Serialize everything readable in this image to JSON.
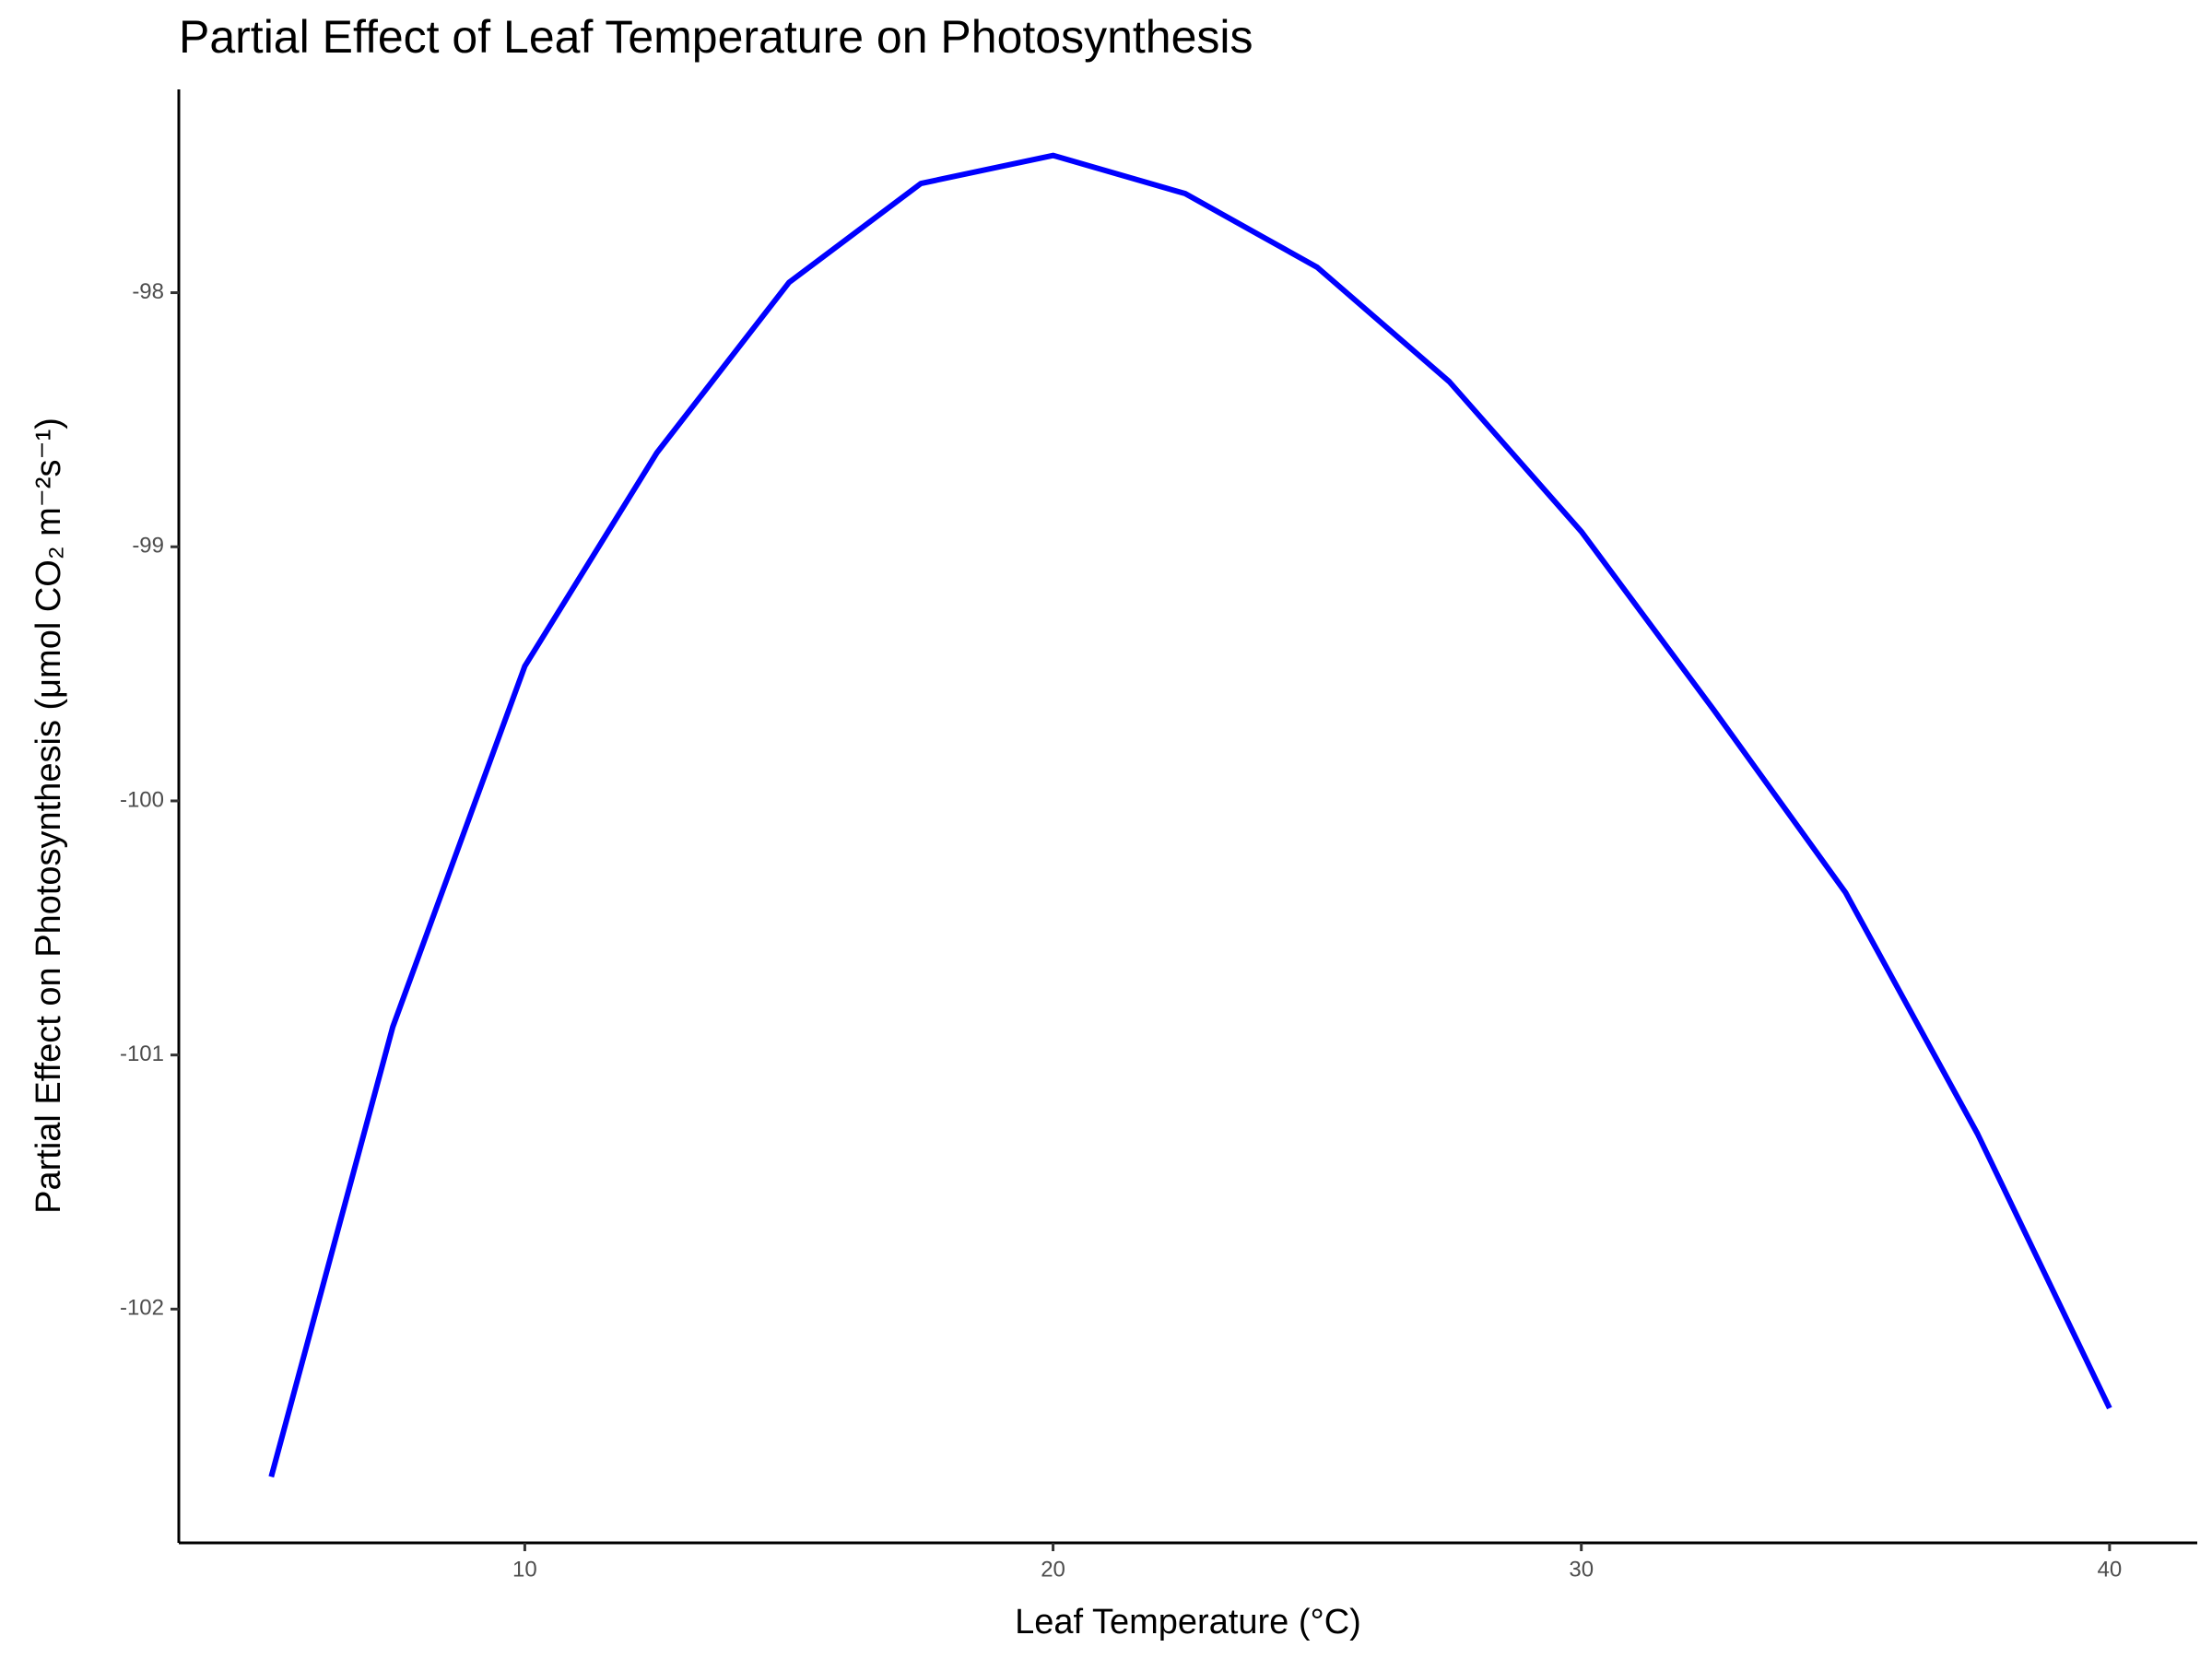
{
  "chart_data": {
    "type": "line",
    "title": "Partial Effect of Leaf Temperature on Photosynthesis",
    "x_label": "Leaf Temperature (°C)",
    "y_label": "Partial Effect on Photosynthesis (μmol CO₂ m⁻²s⁻¹)",
    "x": [
      5.2,
      7.5,
      10,
      12.5,
      15,
      17.5,
      20,
      22.5,
      25,
      27.5,
      30,
      32.5,
      35,
      37.5,
      40
    ],
    "series": [
      {
        "color": "#0000ff",
        "values": [
          -102.66,
          -100.89,
          -99.47,
          -98.63,
          -97.96,
          -97.57,
          -97.46,
          -97.61,
          -97.9,
          -98.35,
          -98.94,
          -99.64,
          -100.36,
          -101.31,
          -102.39
        ]
      }
    ],
    "xlim": [
      3.45,
      41.66
    ],
    "xticks": [
      10,
      20,
      30,
      40
    ],
    "ylim": [
      -102.92,
      -97.2
    ],
    "yticks": [
      -102,
      -101,
      -100,
      -99,
      -98
    ],
    "grid": false
  }
}
